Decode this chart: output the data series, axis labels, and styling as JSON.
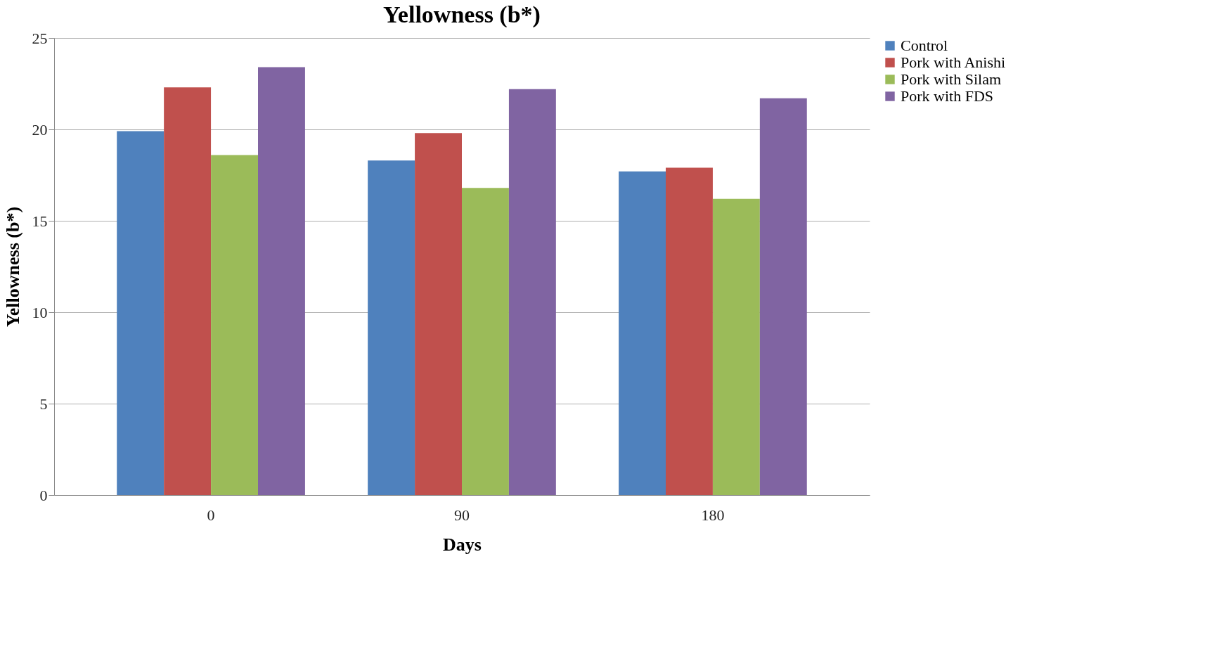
{
  "chart_data": {
    "type": "bar",
    "title": "Yellowness (b*)",
    "xlabel": "Days",
    "ylabel": "Yellowness (b*)",
    "categories": [
      "0",
      "90",
      "180"
    ],
    "series": [
      {
        "name": "Control",
        "color": "#4f81bd",
        "values": [
          19.9,
          18.3,
          17.7
        ]
      },
      {
        "name": "Pork with Anishi",
        "color": "#c0504d",
        "values": [
          22.3,
          19.8,
          17.9
        ]
      },
      {
        "name": "Pork with Silam",
        "color": "#9bbb59",
        "values": [
          18.6,
          16.8,
          16.2
        ]
      },
      {
        "name": "Pork with FDS",
        "color": "#8064a2",
        "values": [
          23.4,
          22.2,
          21.7
        ]
      }
    ],
    "ylim": [
      0,
      25
    ],
    "yticks": [
      0,
      5,
      10,
      15,
      20,
      25
    ],
    "grid": "y",
    "legend": "right"
  }
}
